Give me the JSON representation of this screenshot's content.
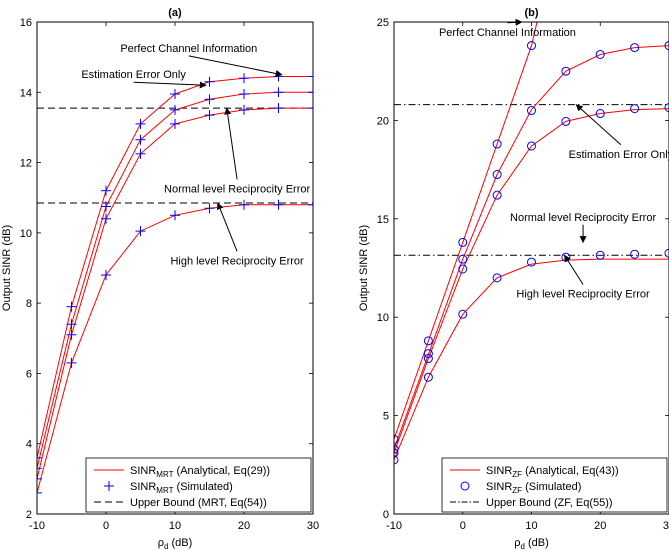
{
  "chart_data": [
    {
      "type": "line",
      "title": "(a)",
      "xlabel": "ρ",
      "xlabel_sub": "d",
      "xlabel_unit": " (dB)",
      "ylabel": "Output SINR (dB)",
      "xlim": [
        -10,
        30
      ],
      "ylim": [
        2,
        16
      ],
      "xticks": [
        -10,
        0,
        10,
        20,
        30
      ],
      "yticks": [
        2,
        4,
        6,
        8,
        10,
        12,
        14,
        16
      ],
      "grid": false,
      "legend_position": "bottom-right",
      "x": [
        -10,
        -5,
        0,
        5,
        10,
        15,
        20,
        25,
        30
      ],
      "series": [
        {
          "id": "perfect",
          "style": "analytical",
          "values": [
            3.6,
            7.9,
            11.2,
            13.1,
            13.95,
            14.3,
            14.4,
            14.45,
            14.45
          ]
        },
        {
          "id": "estimation",
          "style": "analytical",
          "values": [
            3.3,
            7.4,
            10.75,
            12.65,
            13.5,
            13.8,
            13.95,
            14.0,
            14.0
          ]
        },
        {
          "id": "normal",
          "style": "analytical",
          "values": [
            3.0,
            7.1,
            10.4,
            12.25,
            13.1,
            13.35,
            13.5,
            13.55,
            13.55
          ]
        },
        {
          "id": "high",
          "style": "analytical",
          "values": [
            2.6,
            6.3,
            8.8,
            10.05,
            10.5,
            10.7,
            10.8,
            10.8,
            10.8
          ]
        }
      ],
      "simulated_points": [
        {
          "series": "perfect",
          "values": [
            3.6,
            7.9,
            11.2,
            13.1,
            13.95,
            14.3,
            14.4,
            14.45,
            14.45
          ]
        },
        {
          "series": "estimation",
          "values": [
            3.3,
            7.4,
            10.75,
            12.65,
            13.5,
            13.8,
            13.95,
            14.0,
            14.0
          ]
        },
        {
          "series": "normal",
          "values": [
            3.0,
            7.1,
            10.4,
            12.25,
            13.1,
            13.35,
            13.5,
            13.55,
            13.55
          ]
        },
        {
          "series": "high",
          "values": [
            2.6,
            6.3,
            8.8,
            10.05,
            10.5,
            10.7,
            10.8,
            10.8,
            10.8
          ]
        }
      ],
      "upper_bounds": [
        13.55,
        10.85
      ],
      "annotations": [
        {
          "text": "Perfect Channel Information",
          "tx": 12,
          "ty": 15.15,
          "ax": 25.5,
          "ay": 14.5
        },
        {
          "text": "Estimation Error Only",
          "tx": 4,
          "ty": 14.4,
          "ax": 14.5,
          "ay": 14.2
        },
        {
          "text": "Normal level Reciprocity Error",
          "tx": 19,
          "ty": 11.15,
          "ax": 17.5,
          "ay": 13.55
        },
        {
          "text": "High level Reciprocity Error",
          "tx": 19,
          "ty": 9.1,
          "ax": 16.2,
          "ay": 10.85
        }
      ],
      "legend": [
        {
          "kind": "line",
          "main": "SINR",
          "sub": "MRT",
          "rest": " (Analytical, Eq(29))"
        },
        {
          "kind": "marker",
          "main": "SINR",
          "sub": "MRT",
          "rest": " (Simulated)"
        },
        {
          "kind": "bound",
          "main": "Upper Bound (MRT, Eq(54))",
          "sub": "",
          "rest": ""
        }
      ],
      "marker": "plus",
      "colors": {
        "line": "#ff0000",
        "marker": "#0000ff",
        "bound": "#000000"
      }
    },
    {
      "type": "line",
      "title": "(b)",
      "xlabel": "ρ",
      "xlabel_sub": "d",
      "xlabel_unit": " (dB)",
      "ylabel": "Output SINR (dB)",
      "xlim": [
        -10,
        30
      ],
      "ylim": [
        0,
        25
      ],
      "xticks": [
        -10,
        0,
        10,
        20,
        30
      ],
      "yticks": [
        0,
        5,
        10,
        15,
        20,
        25
      ],
      "grid": false,
      "legend_position": "bottom-right",
      "x": [
        -10,
        -5,
        0,
        5,
        10,
        15,
        20,
        25,
        30
      ],
      "series": [
        {
          "id": "perfect",
          "style": "analytical",
          "x": [
            -10,
            -5,
            0,
            5,
            10,
            10.8
          ],
          "values": [
            3.8,
            8.8,
            13.8,
            18.8,
            23.8,
            25
          ]
        },
        {
          "id": "estimation",
          "style": "analytical",
          "values": [
            3.3,
            8.1,
            12.95,
            17.25,
            20.55,
            22.5,
            23.35,
            23.7,
            23.8
          ]
        },
        {
          "id": "normal",
          "style": "analytical",
          "values": [
            3.1,
            7.9,
            12.45,
            16.2,
            18.7,
            19.95,
            20.35,
            20.55,
            20.6
          ]
        },
        {
          "id": "high",
          "style": "analytical",
          "values": [
            2.75,
            6.95,
            10.15,
            12.0,
            12.7,
            12.9,
            12.95,
            12.95,
            12.95
          ]
        }
      ],
      "simulated_points": [
        {
          "series": "perfect",
          "x": [
            -10,
            -5,
            0,
            5,
            10
          ],
          "values": [
            3.8,
            8.8,
            13.8,
            18.8,
            23.8
          ]
        },
        {
          "series": "estimation",
          "values": [
            3.3,
            8.15,
            12.95,
            17.25,
            20.5,
            22.5,
            23.35,
            23.7,
            23.8
          ]
        },
        {
          "series": "normal",
          "values": [
            3.1,
            7.9,
            12.45,
            16.2,
            18.7,
            19.95,
            20.35,
            20.6,
            20.65
          ]
        },
        {
          "series": "high",
          "values": [
            2.75,
            6.95,
            10.15,
            12.0,
            12.8,
            13.05,
            13.15,
            13.2,
            13.25
          ]
        }
      ],
      "upper_bounds": [
        20.8,
        13.15
      ],
      "annotations": [
        {
          "text": "Perfect Channel Information",
          "tx": 6.5,
          "ty": 24.3,
          "ax": 8.6,
          "ay": 25
        },
        {
          "text": "Estimation Error Only",
          "tx": 23,
          "ty": 18.1,
          "ax": 16.5,
          "ay": 20.8
        },
        {
          "text": "Normal level Reciprocity Error",
          "tx": 17.5,
          "ty": 14.9,
          "ax": 17.5,
          "ay": 13.8
        },
        {
          "text": "High level Reciprocity Error",
          "tx": 17.5,
          "ty": 11.0,
          "ax": 14.8,
          "ay": 13.15
        }
      ],
      "legend": [
        {
          "kind": "line",
          "main": "SINR",
          "sub": "ZF",
          "rest": " (Analytical, Eq(43))"
        },
        {
          "kind": "marker",
          "main": "SINR",
          "sub": "ZF",
          "rest": " (Simulated)"
        },
        {
          "kind": "bound",
          "main": "Upper Bound (ZF, Eq(55))",
          "sub": "",
          "rest": ""
        }
      ],
      "marker": "circle",
      "colors": {
        "line": "#ff0000",
        "marker": "#0000ff",
        "bound": "#000000"
      }
    }
  ]
}
